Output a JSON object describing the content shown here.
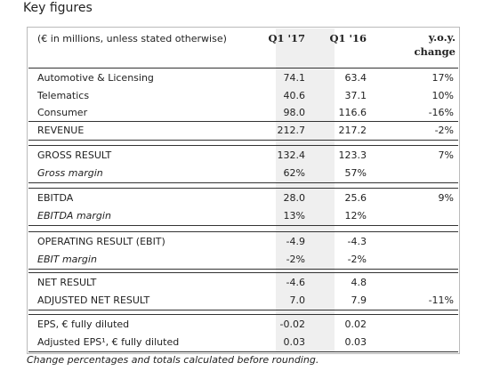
{
  "title": "Key figures",
  "table": {
    "header": [
      "(€ in millions, unless stated otherwise)",
      "Q1 '17",
      "Q1 '16",
      "y.o.y. change"
    ],
    "groups": [
      [
        [
          "Automotive & Licensing",
          "74.1",
          "63.4",
          "17%"
        ],
        [
          "Telematics",
          "40.6",
          "37.1",
          "10%"
        ],
        [
          "Consumer",
          "98.0",
          "116.6",
          "-16%"
        ],
        [
          "REVENUE",
          "212.7",
          "217.2",
          "-2%"
        ]
      ],
      [
        [
          "GROSS RESULT",
          "132.4",
          "123.3",
          "7%"
        ],
        [
          "Gross margin",
          "62%",
          "57%",
          null
        ]
      ],
      [
        [
          "EBITDA",
          "28.0",
          "25.6",
          "9%"
        ],
        [
          "EBITDA margin",
          "13%",
          "12%",
          null
        ]
      ],
      [
        [
          "OPERATING RESULT (EBIT)",
          "-4.9",
          "-4.3",
          null
        ],
        [
          "EBIT margin",
          "-2%",
          "-2%",
          null
        ]
      ],
      [
        [
          "NET RESULT",
          "-4.6",
          "4.8",
          null
        ],
        [
          "ADJUSTED NET RESULT",
          "7.0",
          "7.9",
          "-11%"
        ]
      ],
      [
        [
          "EPS, € fully diluted",
          "-0.02",
          "0.02",
          null
        ],
        [
          "Adjusted EPS¹, € fully diluted",
          "0.03",
          "0.03",
          null
        ]
      ]
    ]
  },
  "footnote": "Change percentages and totals calculated before rounding."
}
